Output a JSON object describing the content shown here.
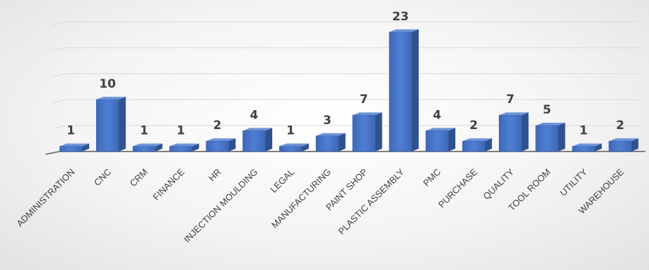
{
  "chart_data": {
    "type": "bar",
    "title": "",
    "xlabel": "",
    "ylabel": "",
    "categories": [
      "ADMINISTRATION",
      "CNC",
      "CRM",
      "FINANCE",
      "HR",
      "INJECTION MOULDING",
      "LEGAL",
      "MANUFACTURING",
      "PAINT SHOP",
      "PLASTIC ASSEMBLY",
      "PMC",
      "PURCHASE",
      "QUALITY",
      "TOOL ROOM",
      "UTILITY",
      "WAREHOUSE"
    ],
    "values": [
      1,
      10,
      1,
      1,
      2,
      4,
      1,
      3,
      7,
      23,
      4,
      2,
      7,
      5,
      1,
      2
    ],
    "ylim": [
      0,
      25
    ],
    "grid": true,
    "legend": "none",
    "colors": {
      "bar_front": "#4472C4",
      "bar_side": "#2F528F",
      "bar_top": "#6F95D8",
      "grid": "#d9d9d9"
    }
  }
}
